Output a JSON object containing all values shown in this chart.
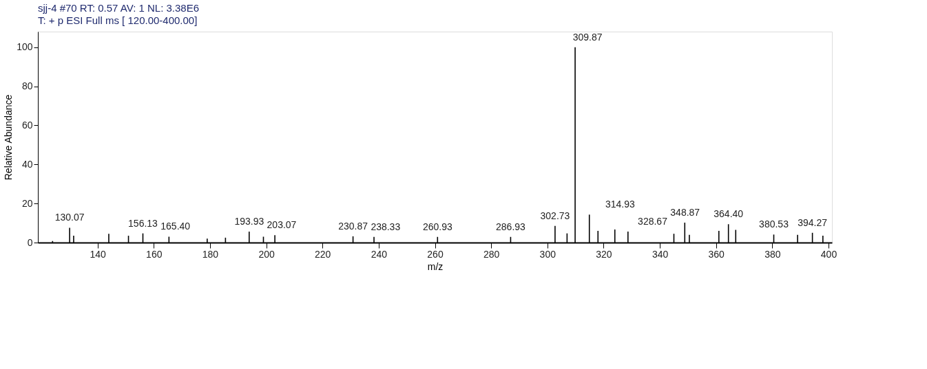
{
  "chart_data": {
    "type": "bar",
    "title": "sjj-4 #70  RT: 0.57  AV: 1  NL: 3.38E6",
    "subtitle": "T: + p ESI Full ms [ 120.00-400.00]",
    "xlabel": "m/z",
    "ylabel": "Relative Abundance",
    "color": "#000000",
    "x": [
      124,
      130.07,
      131.5,
      144,
      151,
      156.13,
      165.4,
      179,
      185.5,
      193.93,
      199,
      203.07,
      230.87,
      238.33,
      260.93,
      286.93,
      302.73,
      307,
      309.87,
      314.93,
      318,
      324,
      328.67,
      345,
      348.87,
      350.5,
      361,
      364.4,
      367,
      380.53,
      389,
      394.27,
      398
    ],
    "values": [
      0.8,
      7.6,
      3.5,
      4.5,
      3.5,
      4.7,
      3,
      2,
      2.5,
      5.6,
      3,
      3.8,
      3.2,
      2.9,
      2.9,
      2.9,
      8.5,
      4.7,
      100,
      14.3,
      6,
      6.7,
      5.6,
      4.5,
      10.2,
      4,
      6,
      9.4,
      6.5,
      4.1,
      4,
      5,
      3.5
    ],
    "annotations": [
      {
        "text": "130.07",
        "x": 130.07,
        "y": 7.6
      },
      {
        "text": "156.13",
        "x": 156.13,
        "y": 4.7
      },
      {
        "text": "165.40",
        "x": 165.4,
        "y": 3
      },
      {
        "text": "193.93",
        "x": 193.93,
        "y": 5.6
      },
      {
        "text": "203.07",
        "x": 203.07,
        "y": 3.8
      },
      {
        "text": "230.87",
        "x": 230.87,
        "y": 3.2
      },
      {
        "text": "238.33",
        "x": 238.33,
        "y": 2.9
      },
      {
        "text": "260.93",
        "x": 260.93,
        "y": 2.9
      },
      {
        "text": "286.93",
        "x": 286.93,
        "y": 2.9
      },
      {
        "text": "302.73",
        "x": 302.73,
        "y": 8.5
      },
      {
        "text": "309.87",
        "x": 309.87,
        "y": 100
      },
      {
        "text": "314.93",
        "x": 314.93,
        "y": 14.3
      },
      {
        "text": "328.67",
        "x": 328.67,
        "y": 5.6
      },
      {
        "text": "348.87",
        "x": 348.87,
        "y": 10.2
      },
      {
        "text": "364.40",
        "x": 364.4,
        "y": 9.4
      },
      {
        "text": "380.53",
        "x": 380.53,
        "y": 4.1
      },
      {
        "text": "394.27",
        "x": 394.27,
        "y": 5
      }
    ],
    "xlim": [
      120,
      400
    ],
    "ylim": [
      0,
      108
    ],
    "xticks": [
      140,
      160,
      180,
      200,
      220,
      240,
      260,
      280,
      300,
      320,
      340,
      360,
      380,
      400
    ],
    "yticks": [
      0,
      20,
      40,
      60,
      80,
      100
    ],
    "grid": false
  }
}
